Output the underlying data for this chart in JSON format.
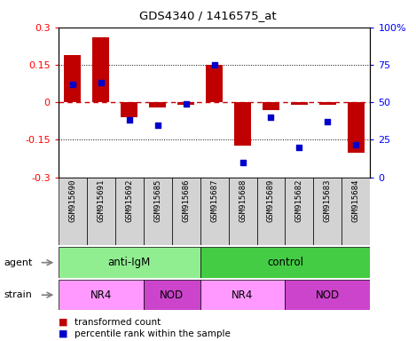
{
  "title": "GDS4340 / 1416575_at",
  "samples": [
    "GSM915690",
    "GSM915691",
    "GSM915692",
    "GSM915685",
    "GSM915686",
    "GSM915687",
    "GSM915688",
    "GSM915689",
    "GSM915682",
    "GSM915683",
    "GSM915684"
  ],
  "transformed_count": [
    0.19,
    0.26,
    -0.06,
    -0.02,
    -0.01,
    0.15,
    -0.175,
    -0.03,
    -0.01,
    -0.01,
    -0.2
  ],
  "percentile_rank": [
    62,
    63,
    38,
    35,
    49,
    75,
    10,
    40,
    20,
    37,
    22
  ],
  "ylim": [
    -0.3,
    0.3
  ],
  "y2lim": [
    0,
    100
  ],
  "yticks": [
    -0.3,
    -0.15,
    0,
    0.15,
    0.3
  ],
  "y2ticks": [
    0,
    25,
    50,
    75,
    100
  ],
  "hlines": [
    -0.15,
    0,
    0.15
  ],
  "bar_color": "#C00000",
  "dot_color": "#0000CC",
  "agent_groups": [
    {
      "label": "anti-IgM",
      "start": 0,
      "end": 5,
      "color": "#90EE90"
    },
    {
      "label": "control",
      "start": 5,
      "end": 11,
      "color": "#44CC44"
    }
  ],
  "strain_groups": [
    {
      "label": "NR4",
      "start": 0,
      "end": 3,
      "color": "#FF99FF"
    },
    {
      "label": "NOD",
      "start": 3,
      "end": 5,
      "color": "#CC44CC"
    },
    {
      "label": "NR4",
      "start": 5,
      "end": 8,
      "color": "#FF99FF"
    },
    {
      "label": "NOD",
      "start": 8,
      "end": 11,
      "color": "#CC44CC"
    }
  ],
  "legend_items": [
    {
      "label": "transformed count",
      "color": "#C00000"
    },
    {
      "label": "percentile rank within the sample",
      "color": "#0000CC"
    }
  ],
  "bg_color": "#FFFFFF",
  "zero_line_color": "#CC0000",
  "label_color": "#808080",
  "anti_igm_color": "#90EE90",
  "control_color": "#44CC44",
  "nr4_color": "#FF99FF",
  "nod_color": "#DD44DD"
}
